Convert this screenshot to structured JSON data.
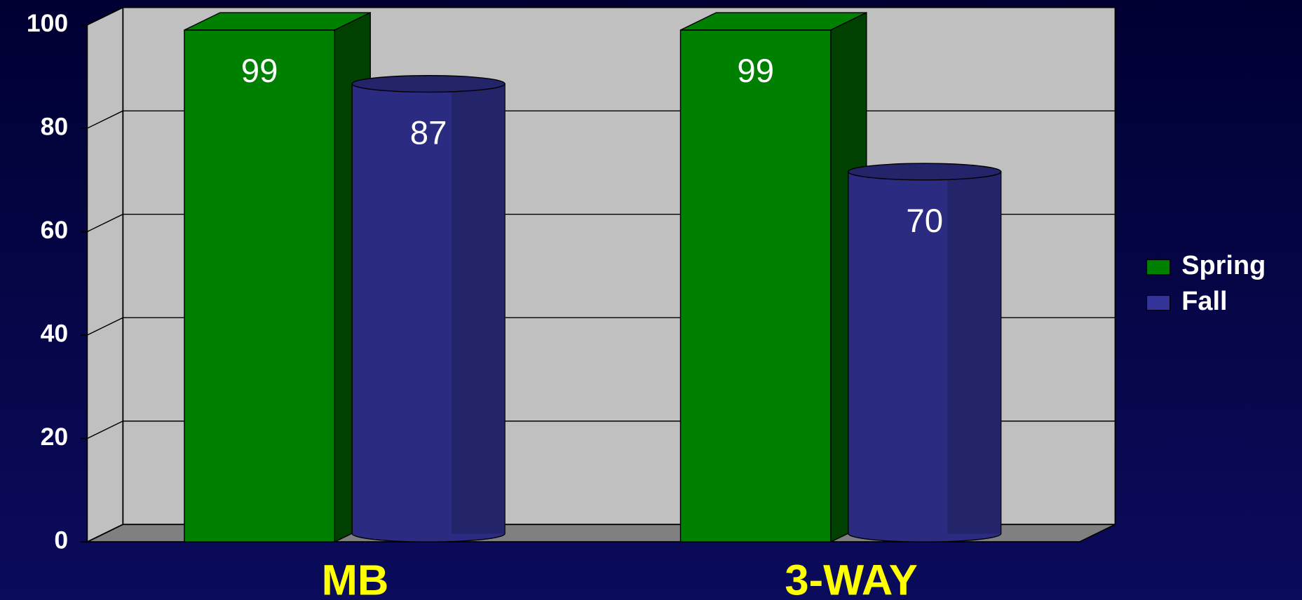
{
  "chart_data": {
    "type": "bar3d",
    "categories": [
      "MB",
      "3-WAY"
    ],
    "series": [
      {
        "name": "Spring",
        "color": "#008000",
        "values": [
          99,
          99
        ]
      },
      {
        "name": "Fall",
        "color": "#333399",
        "values": [
          87,
          70
        ]
      }
    ],
    "ylim": [
      0,
      100
    ],
    "yticks": [
      0,
      20,
      40,
      60,
      80,
      100
    ],
    "grid": true,
    "legend": "right"
  }
}
